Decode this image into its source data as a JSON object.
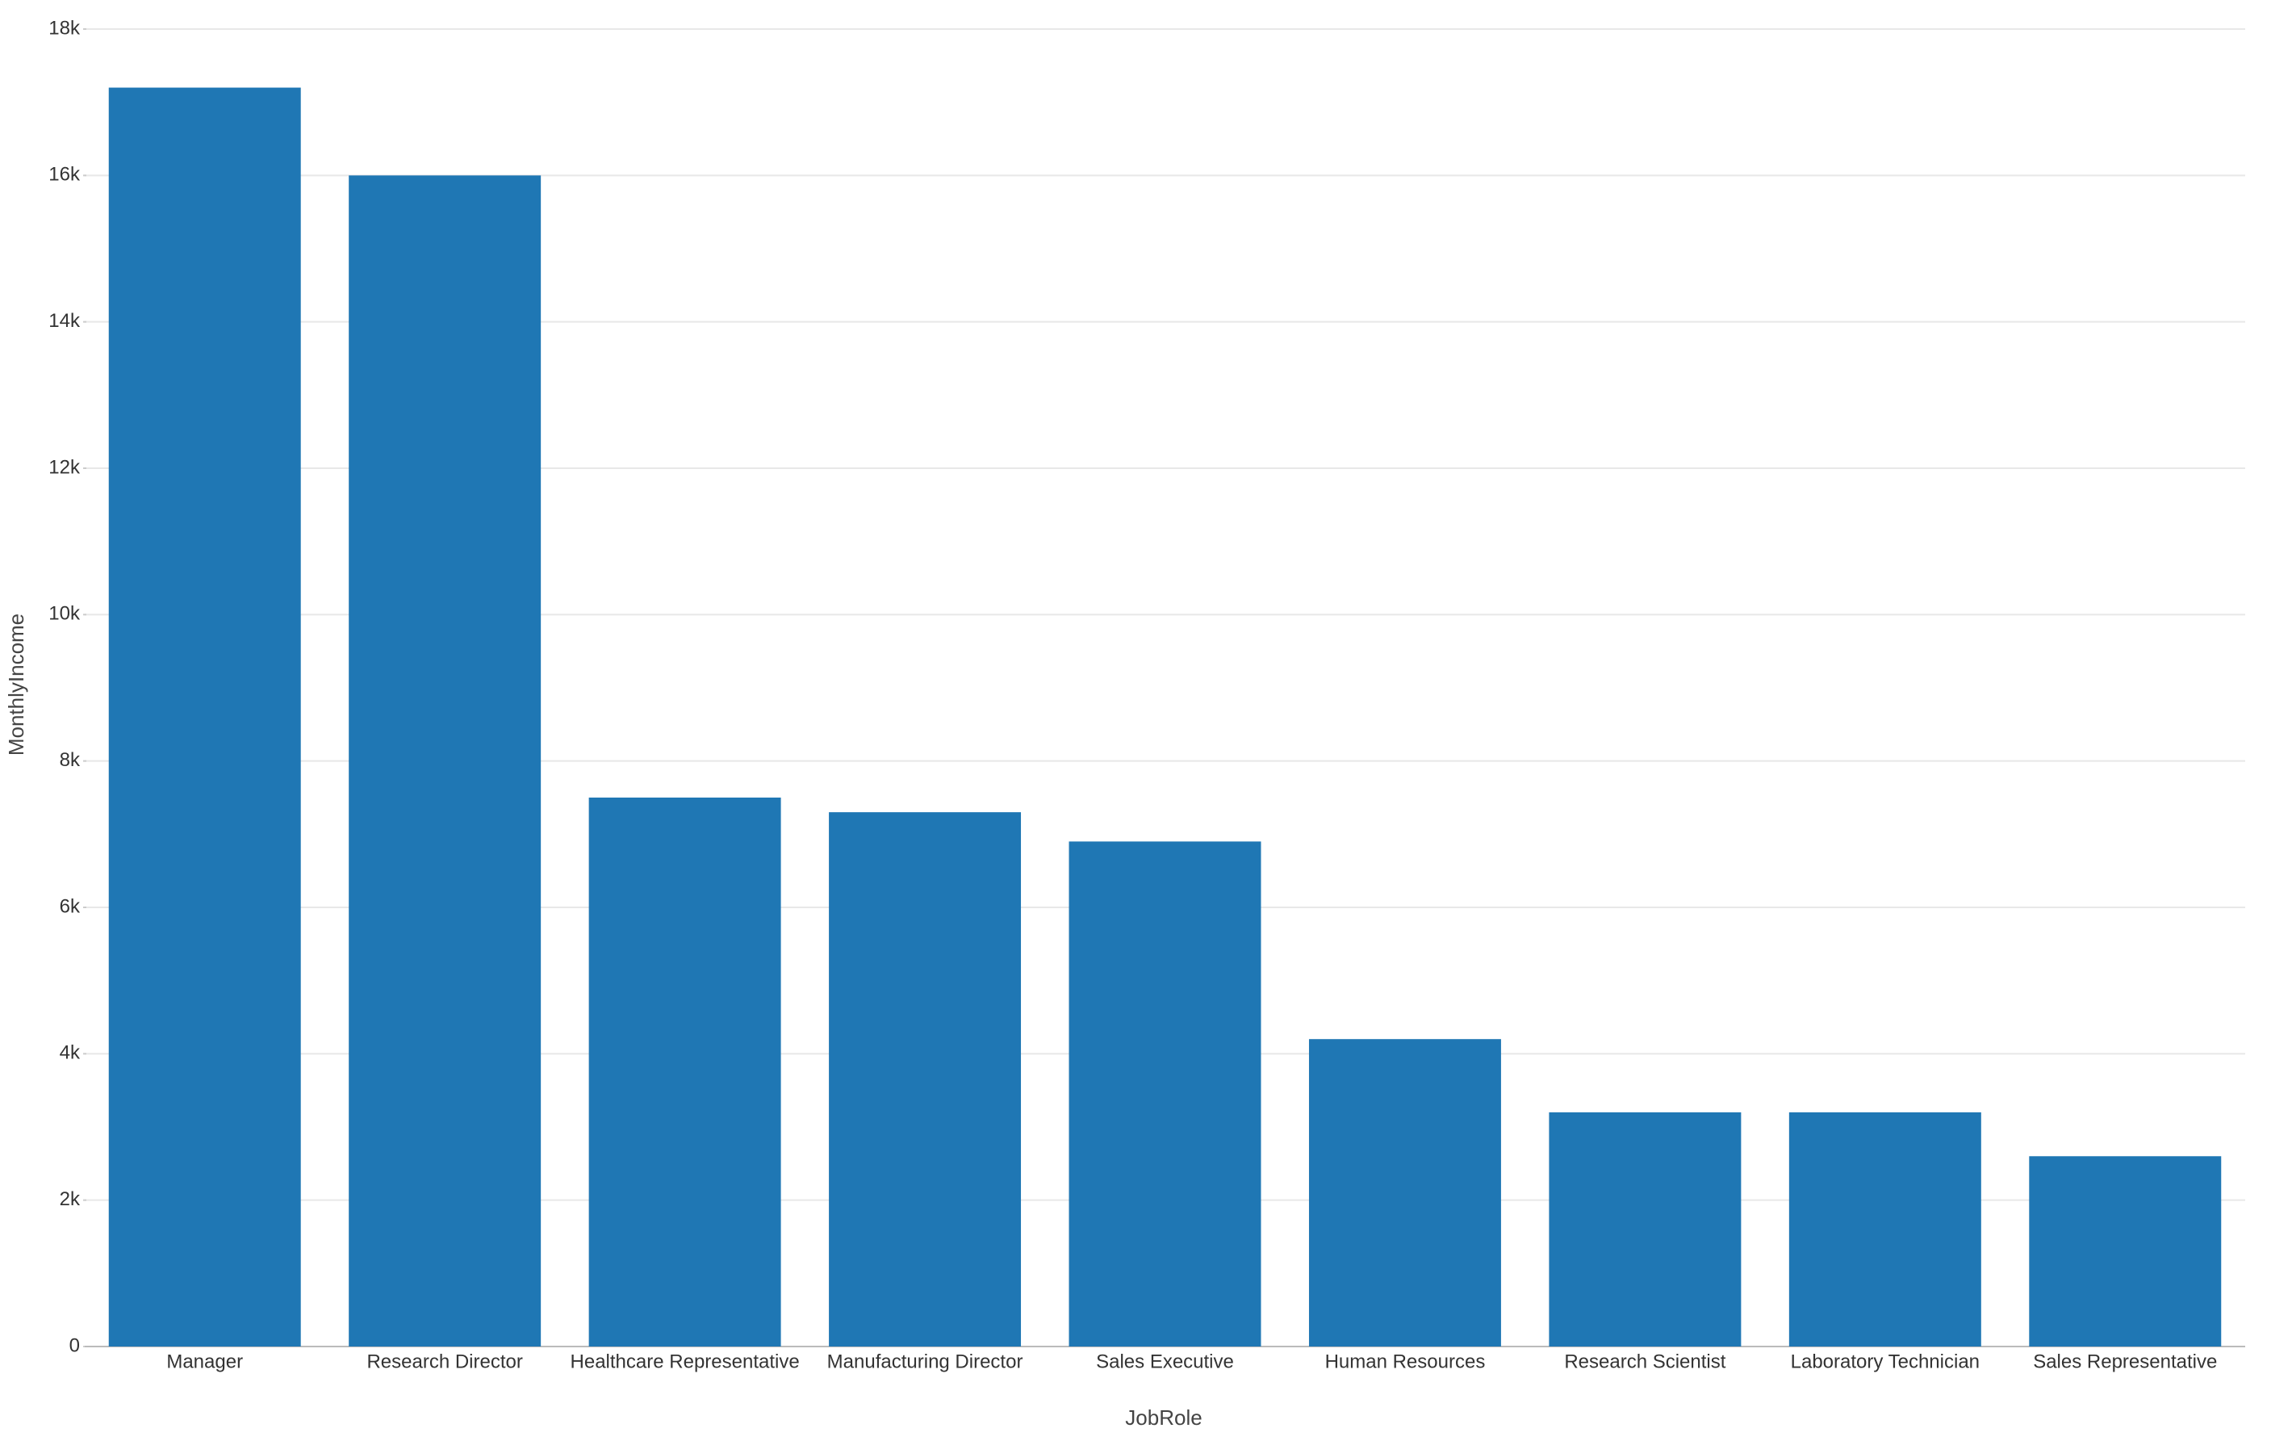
{
  "chart_data": {
    "type": "bar",
    "x_label": "JobRole",
    "y_label": "MonthlyIncome",
    "categories": [
      "Manager",
      "Research Director",
      "Healthcare Representative",
      "Manufacturing Director",
      "Sales Executive",
      "Human Resources",
      "Research Scientist",
      "Laboratory Technician",
      "Sales Representative"
    ],
    "values": [
      17200,
      16000,
      7500,
      7300,
      6900,
      4200,
      3200,
      3200,
      2600
    ],
    "color": "#1f77b4",
    "ylim": [
      0,
      18000
    ],
    "yticks": [
      0,
      {
        "value": 2000,
        "label": "2k"
      },
      {
        "value": 4000,
        "label": "4k"
      },
      {
        "value": 6000,
        "label": "6k"
      },
      {
        "value": 8000,
        "label": "8k"
      },
      {
        "value": 10000,
        "label": "10k"
      },
      {
        "value": 12000,
        "label": "12k"
      },
      {
        "value": 14000,
        "label": "14k"
      },
      {
        "value": 16000,
        "label": "16k"
      },
      {
        "value": 18000,
        "label": "18k"
      }
    ],
    "grid": true
  }
}
